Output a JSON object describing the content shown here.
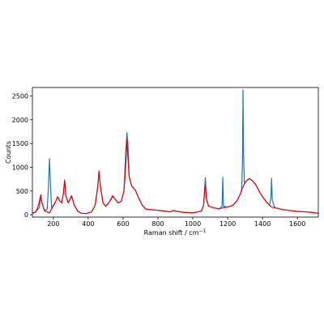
{
  "chart_data": {
    "type": "line",
    "xlabel": "Raman shift / cm",
    "xlabel_superscript": "−1",
    "ylabel": "Counts",
    "xlim": [
      80,
      1720
    ],
    "ylim": [
      -50,
      2680
    ],
    "x_ticks": [
      200,
      400,
      600,
      800,
      1000,
      1200,
      1400,
      1600
    ],
    "y_ticks": [
      0,
      500,
      1000,
      1500,
      2000,
      2500
    ],
    "grid": false,
    "legend": "none",
    "series": [
      {
        "color": "#1f77b4",
        "points": [
          [
            80,
            30
          ],
          [
            100,
            60
          ],
          [
            120,
            150
          ],
          [
            128,
            380
          ],
          [
            135,
            250
          ],
          [
            150,
            80
          ],
          [
            165,
            120
          ],
          [
            172,
            600
          ],
          [
            178,
            1180
          ],
          [
            183,
            700
          ],
          [
            190,
            150
          ],
          [
            210,
            250
          ],
          [
            225,
            380
          ],
          [
            235,
            300
          ],
          [
            248,
            250
          ],
          [
            258,
            450
          ],
          [
            265,
            730
          ],
          [
            272,
            400
          ],
          [
            285,
            250
          ],
          [
            305,
            380
          ],
          [
            320,
            200
          ],
          [
            340,
            80
          ],
          [
            360,
            30
          ],
          [
            390,
            25
          ],
          [
            420,
            60
          ],
          [
            440,
            200
          ],
          [
            455,
            600
          ],
          [
            462,
            900
          ],
          [
            470,
            600
          ],
          [
            485,
            250
          ],
          [
            500,
            180
          ],
          [
            520,
            260
          ],
          [
            540,
            380
          ],
          [
            555,
            330
          ],
          [
            570,
            250
          ],
          [
            590,
            280
          ],
          [
            605,
            500
          ],
          [
            615,
            1300
          ],
          [
            622,
            1730
          ],
          [
            628,
            1500
          ],
          [
            635,
            800
          ],
          [
            650,
            600
          ],
          [
            670,
            520
          ],
          [
            690,
            350
          ],
          [
            710,
            200
          ],
          [
            730,
            120
          ],
          [
            780,
            100
          ],
          [
            830,
            80
          ],
          [
            870,
            60
          ],
          [
            890,
            90
          ],
          [
            910,
            70
          ],
          [
            950,
            50
          ],
          [
            1000,
            40
          ],
          [
            1030,
            60
          ],
          [
            1050,
            80
          ],
          [
            1062,
            200
          ],
          [
            1068,
            560
          ],
          [
            1072,
            780
          ],
          [
            1078,
            350
          ],
          [
            1090,
            180
          ],
          [
            1120,
            150
          ],
          [
            1150,
            120
          ],
          [
            1168,
            180
          ],
          [
            1172,
            790
          ],
          [
            1176,
            180
          ],
          [
            1200,
            160
          ],
          [
            1230,
            200
          ],
          [
            1255,
            300
          ],
          [
            1270,
            420
          ],
          [
            1280,
            500
          ],
          [
            1285,
            1100
          ],
          [
            1288,
            2630
          ],
          [
            1291,
            1300
          ],
          [
            1296,
            650
          ],
          [
            1310,
            720
          ],
          [
            1325,
            760
          ],
          [
            1340,
            720
          ],
          [
            1360,
            640
          ],
          [
            1380,
            500
          ],
          [
            1400,
            380
          ],
          [
            1420,
            280
          ],
          [
            1440,
            200
          ],
          [
            1448,
            360
          ],
          [
            1452,
            770
          ],
          [
            1456,
            300
          ],
          [
            1470,
            150
          ],
          [
            1500,
            120
          ],
          [
            1550,
            90
          ],
          [
            1600,
            70
          ],
          [
            1650,
            60
          ],
          [
            1700,
            40
          ],
          [
            1720,
            30
          ]
        ]
      },
      {
        "color": "#ee0000",
        "points": [
          [
            80,
            30
          ],
          [
            100,
            60
          ],
          [
            115,
            200
          ],
          [
            128,
            420
          ],
          [
            135,
            250
          ],
          [
            150,
            80
          ],
          [
            165,
            60
          ],
          [
            178,
            40
          ],
          [
            190,
            120
          ],
          [
            210,
            250
          ],
          [
            225,
            380
          ],
          [
            235,
            300
          ],
          [
            248,
            250
          ],
          [
            258,
            450
          ],
          [
            265,
            730
          ],
          [
            272,
            400
          ],
          [
            285,
            250
          ],
          [
            305,
            400
          ],
          [
            320,
            200
          ],
          [
            340,
            80
          ],
          [
            360,
            30
          ],
          [
            390,
            25
          ],
          [
            420,
            60
          ],
          [
            440,
            200
          ],
          [
            455,
            600
          ],
          [
            462,
            920
          ],
          [
            470,
            600
          ],
          [
            485,
            250
          ],
          [
            500,
            180
          ],
          [
            520,
            260
          ],
          [
            540,
            400
          ],
          [
            555,
            330
          ],
          [
            570,
            250
          ],
          [
            590,
            280
          ],
          [
            605,
            500
          ],
          [
            615,
            1000
          ],
          [
            622,
            1580
          ],
          [
            628,
            1200
          ],
          [
            635,
            800
          ],
          [
            650,
            600
          ],
          [
            670,
            520
          ],
          [
            690,
            350
          ],
          [
            710,
            200
          ],
          [
            730,
            120
          ],
          [
            780,
            100
          ],
          [
            830,
            80
          ],
          [
            870,
            60
          ],
          [
            890,
            90
          ],
          [
            910,
            70
          ],
          [
            950,
            50
          ],
          [
            1000,
            40
          ],
          [
            1030,
            60
          ],
          [
            1050,
            80
          ],
          [
            1062,
            200
          ],
          [
            1068,
            520
          ],
          [
            1072,
            640
          ],
          [
            1078,
            330
          ],
          [
            1090,
            180
          ],
          [
            1120,
            150
          ],
          [
            1150,
            120
          ],
          [
            1168,
            140
          ],
          [
            1176,
            150
          ],
          [
            1200,
            160
          ],
          [
            1230,
            200
          ],
          [
            1255,
            300
          ],
          [
            1270,
            420
          ],
          [
            1285,
            560
          ],
          [
            1300,
            680
          ],
          [
            1315,
            740
          ],
          [
            1325,
            760
          ],
          [
            1340,
            720
          ],
          [
            1360,
            640
          ],
          [
            1380,
            500
          ],
          [
            1400,
            380
          ],
          [
            1420,
            280
          ],
          [
            1440,
            200
          ],
          [
            1452,
            160
          ],
          [
            1470,
            150
          ],
          [
            1500,
            120
          ],
          [
            1550,
            90
          ],
          [
            1600,
            70
          ],
          [
            1650,
            60
          ],
          [
            1700,
            40
          ],
          [
            1720,
            30
          ]
        ]
      }
    ]
  }
}
